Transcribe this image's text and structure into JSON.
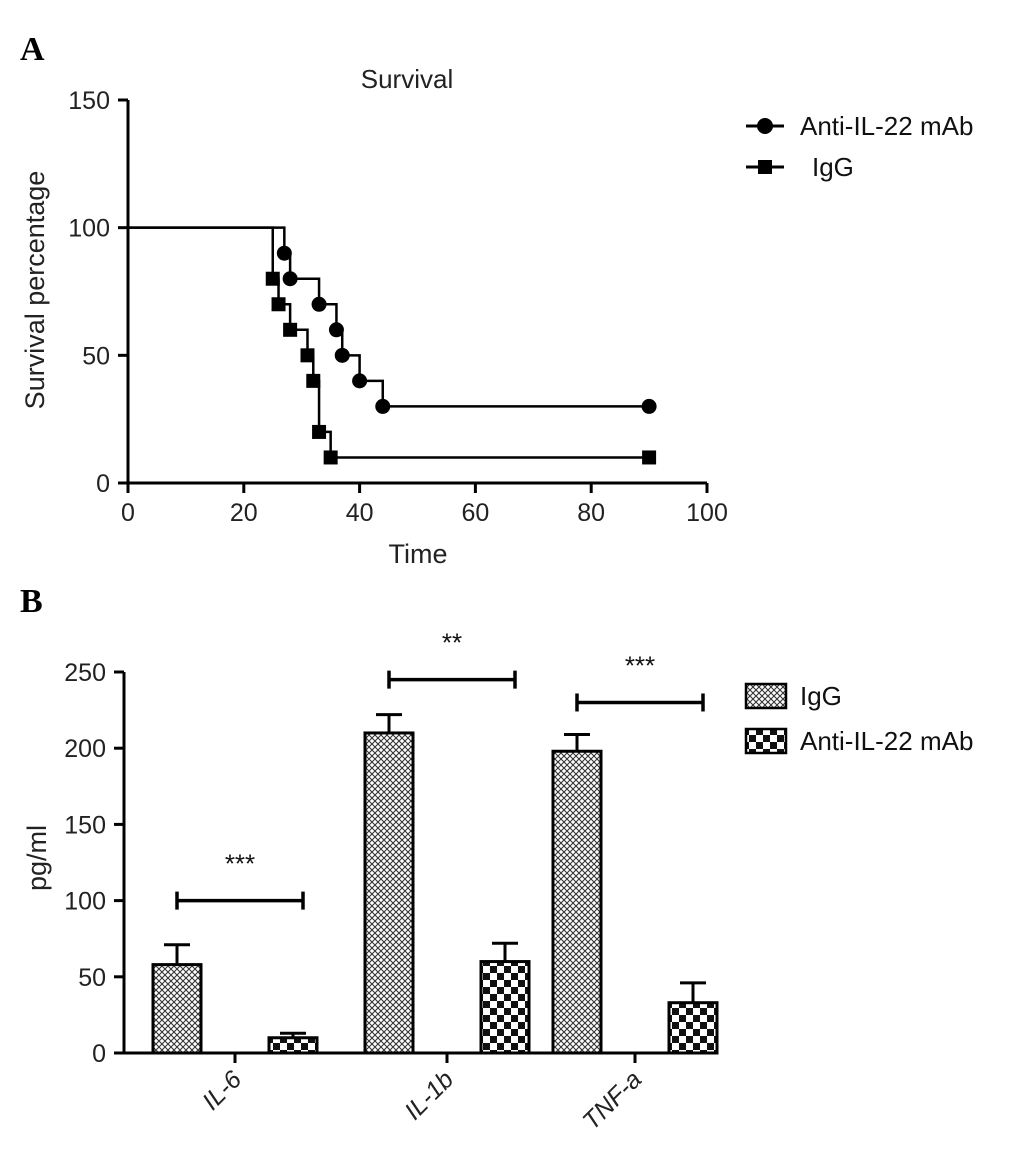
{
  "chart_data": [
    {
      "panel": "A",
      "type": "line",
      "title": "Survival",
      "xlabel": "Time",
      "ylabel": "Survival percentage",
      "xlim": [
        0,
        100
      ],
      "ylim": [
        0,
        150
      ],
      "xticks": [
        0,
        20,
        40,
        60,
        80,
        100
      ],
      "yticks": [
        0,
        50,
        100,
        150
      ],
      "legend_position": "right",
      "series": [
        {
          "name": "Anti-IL-22 mAb",
          "marker": "circle",
          "steps": [
            [
              0,
              100
            ],
            [
              27,
              90
            ],
            [
              28,
              80
            ],
            [
              33,
              70
            ],
            [
              36,
              60
            ],
            [
              37,
              50
            ],
            [
              40,
              40
            ],
            [
              44,
              30
            ],
            [
              90,
              30
            ]
          ],
          "markers": [
            [
              27,
              90
            ],
            [
              28,
              80
            ],
            [
              33,
              70
            ],
            [
              36,
              60
            ],
            [
              37,
              50
            ],
            [
              40,
              40
            ],
            [
              44,
              30
            ],
            [
              90,
              30
            ]
          ]
        },
        {
          "name": "IgG",
          "marker": "square",
          "steps": [
            [
              0,
              100
            ],
            [
              25,
              80
            ],
            [
              26,
              70
            ],
            [
              28,
              60
            ],
            [
              31,
              50
            ],
            [
              32,
              40
            ],
            [
              33,
              20
            ],
            [
              35,
              10
            ],
            [
              90,
              10
            ]
          ],
          "markers": [
            [
              25,
              80
            ],
            [
              26,
              70
            ],
            [
              28,
              60
            ],
            [
              31,
              50
            ],
            [
              32,
              40
            ],
            [
              33,
              20
            ],
            [
              35,
              10
            ],
            [
              90,
              10
            ]
          ]
        }
      ]
    },
    {
      "panel": "B",
      "type": "bar",
      "title": "",
      "xlabel": "",
      "ylabel": "pg/ml",
      "ylim": [
        0,
        250
      ],
      "yticks": [
        0,
        50,
        100,
        150,
        200,
        250
      ],
      "categories": [
        "IL-6",
        "IL-1b",
        "TNF-a"
      ],
      "legend_position": "right",
      "series": [
        {
          "name": "IgG",
          "pattern": "fine-crosshatch",
          "values": [
            58,
            210,
            198
          ],
          "errors": [
            13,
            12,
            11
          ]
        },
        {
          "name": "Anti-IL-22 mAb",
          "pattern": "checkerboard",
          "values": [
            10,
            60,
            33
          ],
          "errors": [
            3,
            12,
            13
          ]
        }
      ],
      "significance": [
        {
          "category": "IL-6",
          "label": "***",
          "y": 100
        },
        {
          "category": "IL-1b",
          "label": "**",
          "y": 245
        },
        {
          "category": "TNF-a",
          "label": "***",
          "y": 230
        }
      ]
    }
  ]
}
